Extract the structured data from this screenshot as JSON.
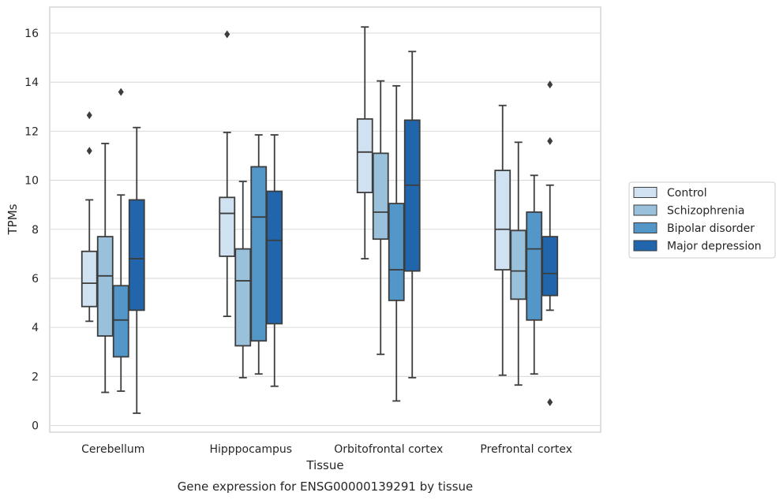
{
  "chart_data": {
    "type": "box",
    "title": "",
    "caption": "Gene expression for ENSG00000139291 by tissue",
    "xlabel": "Tissue",
    "ylabel": "TPMs",
    "ylim": [
      -0.2,
      17
    ],
    "yticks": [
      0,
      2,
      4,
      6,
      8,
      10,
      12,
      14,
      16
    ],
    "grid": "horizontal",
    "legend_position": "right",
    "categories": [
      "Cerebellum",
      "Hipppocampus",
      "Orbitofrontal cortex",
      "Prefrontal cortex"
    ],
    "series": [
      {
        "name": "Control",
        "color": "#d0e1f2",
        "boxes": [
          {
            "whisker_low": 4.25,
            "q1": 4.85,
            "median": 5.8,
            "q3": 7.1,
            "whisker_high": 9.2,
            "outliers": [
              11.2,
              12.65
            ]
          },
          {
            "whisker_low": 4.45,
            "q1": 6.9,
            "median": 8.65,
            "q3": 9.3,
            "whisker_high": 11.95,
            "outliers": [
              15.95
            ]
          },
          {
            "whisker_low": 6.8,
            "q1": 9.5,
            "median": 11.15,
            "q3": 12.5,
            "whisker_high": 16.25,
            "outliers": []
          },
          {
            "whisker_low": 2.05,
            "q1": 6.35,
            "median": 8.0,
            "q3": 10.4,
            "whisker_high": 13.05,
            "outliers": []
          }
        ]
      },
      {
        "name": "Schizophrenia",
        "color": "#9ac1dc",
        "boxes": [
          {
            "whisker_low": 1.35,
            "q1": 3.65,
            "median": 6.1,
            "q3": 7.7,
            "whisker_high": 11.5,
            "outliers": []
          },
          {
            "whisker_low": 1.95,
            "q1": 3.25,
            "median": 5.9,
            "q3": 7.2,
            "whisker_high": 9.95,
            "outliers": []
          },
          {
            "whisker_low": 2.9,
            "q1": 7.6,
            "median": 8.7,
            "q3": 11.1,
            "whisker_high": 14.05,
            "outliers": []
          },
          {
            "whisker_low": 1.65,
            "q1": 5.15,
            "median": 6.3,
            "q3": 7.95,
            "whisker_high": 11.55,
            "outliers": []
          }
        ]
      },
      {
        "name": "Bipolar disorder",
        "color": "#5396c8",
        "boxes": [
          {
            "whisker_low": 1.4,
            "q1": 2.8,
            "median": 4.3,
            "q3": 5.7,
            "whisker_high": 9.4,
            "outliers": [
              13.6
            ]
          },
          {
            "whisker_low": 2.1,
            "q1": 3.45,
            "median": 8.5,
            "q3": 10.55,
            "whisker_high": 11.85,
            "outliers": []
          },
          {
            "whisker_low": 1.0,
            "q1": 5.1,
            "median": 6.35,
            "q3": 9.05,
            "whisker_high": 13.85,
            "outliers": []
          },
          {
            "whisker_low": 2.1,
            "q1": 4.3,
            "median": 7.2,
            "q3": 8.7,
            "whisker_high": 10.2,
            "outliers": []
          }
        ]
      },
      {
        "name": "Major depression",
        "color": "#2166ac",
        "boxes": [
          {
            "whisker_low": 0.5,
            "q1": 4.7,
            "median": 6.8,
            "q3": 9.2,
            "whisker_high": 12.15,
            "outliers": []
          },
          {
            "whisker_low": 1.6,
            "q1": 4.15,
            "median": 7.55,
            "q3": 9.55,
            "whisker_high": 11.85,
            "outliers": []
          },
          {
            "whisker_low": 1.95,
            "q1": 6.3,
            "median": 9.8,
            "q3": 12.45,
            "whisker_high": 15.25,
            "outliers": []
          },
          {
            "whisker_low": 4.7,
            "q1": 5.3,
            "median": 6.2,
            "q3": 7.7,
            "whisker_high": 9.8,
            "outliers": [
              0.95,
              11.6,
              13.9
            ]
          }
        ]
      }
    ]
  }
}
